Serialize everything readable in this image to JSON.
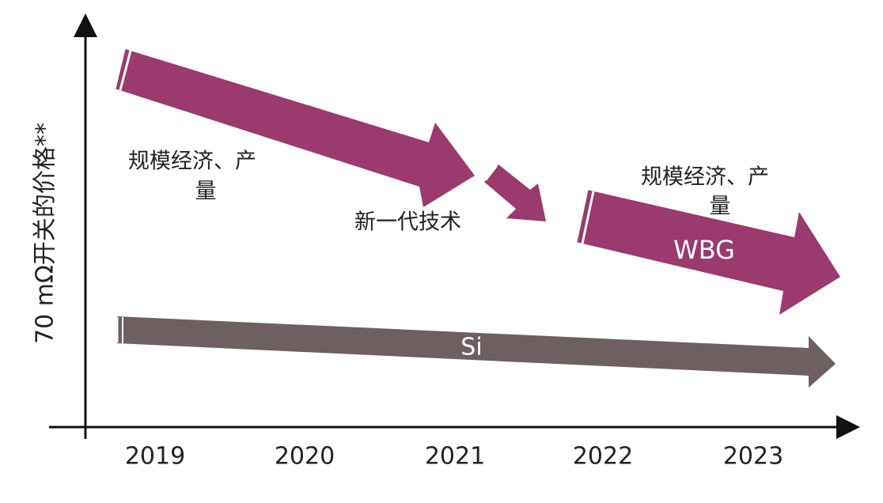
{
  "y_axis_label": "70 mΩ开关的价格**",
  "x_labels": [
    "2019",
    "2020",
    "2021",
    "2022",
    "2023"
  ],
  "annotations": [
    {
      "lines": [
        "规模经济、产",
        "量"
      ]
    },
    {
      "lines": [
        "新一代技术"
      ]
    },
    {
      "lines": [
        "规模经济、产",
        "量"
      ]
    }
  ],
  "arrows": {
    "wbg": "WBG",
    "si": "Si"
  }
}
